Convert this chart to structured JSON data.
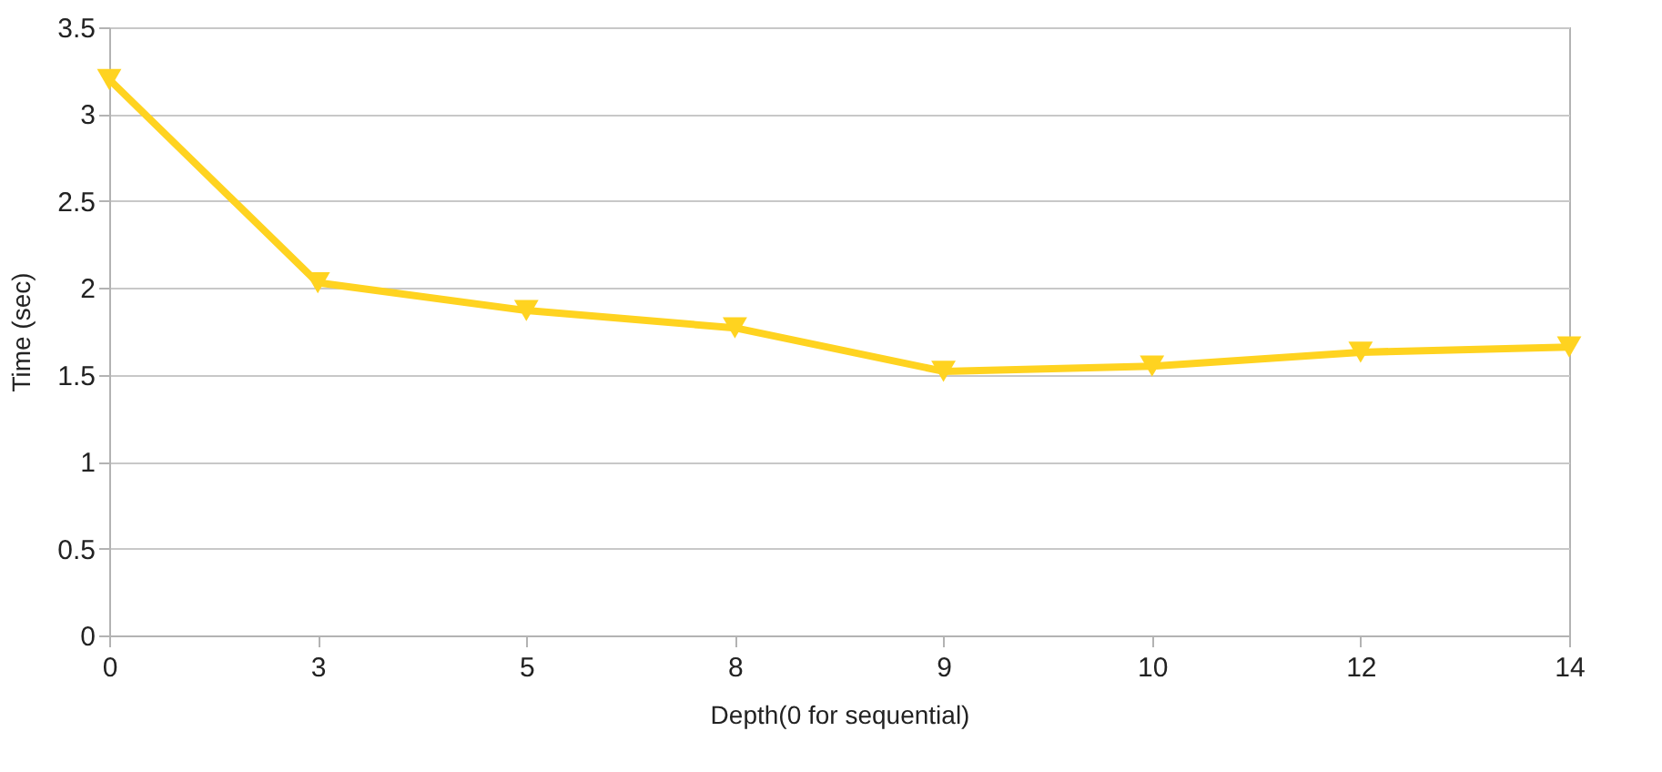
{
  "chart_data": {
    "type": "line",
    "xlabel": "Depth(0 for sequential)",
    "ylabel": "Time (sec)",
    "categories": [
      "0",
      "3",
      "5",
      "8",
      "9",
      "10",
      "12",
      "14"
    ],
    "series": [
      {
        "color": "#ffd320",
        "values": [
          3.2,
          2.03,
          1.87,
          1.77,
          1.52,
          1.55,
          1.63,
          1.66
        ]
      }
    ],
    "ylim": [
      0,
      3.5
    ],
    "yticks": [
      0,
      0.5,
      1,
      1.5,
      2,
      2.5,
      3,
      3.5
    ],
    "grid": "y",
    "marker": "triangle-down",
    "line_style": "solid"
  }
}
